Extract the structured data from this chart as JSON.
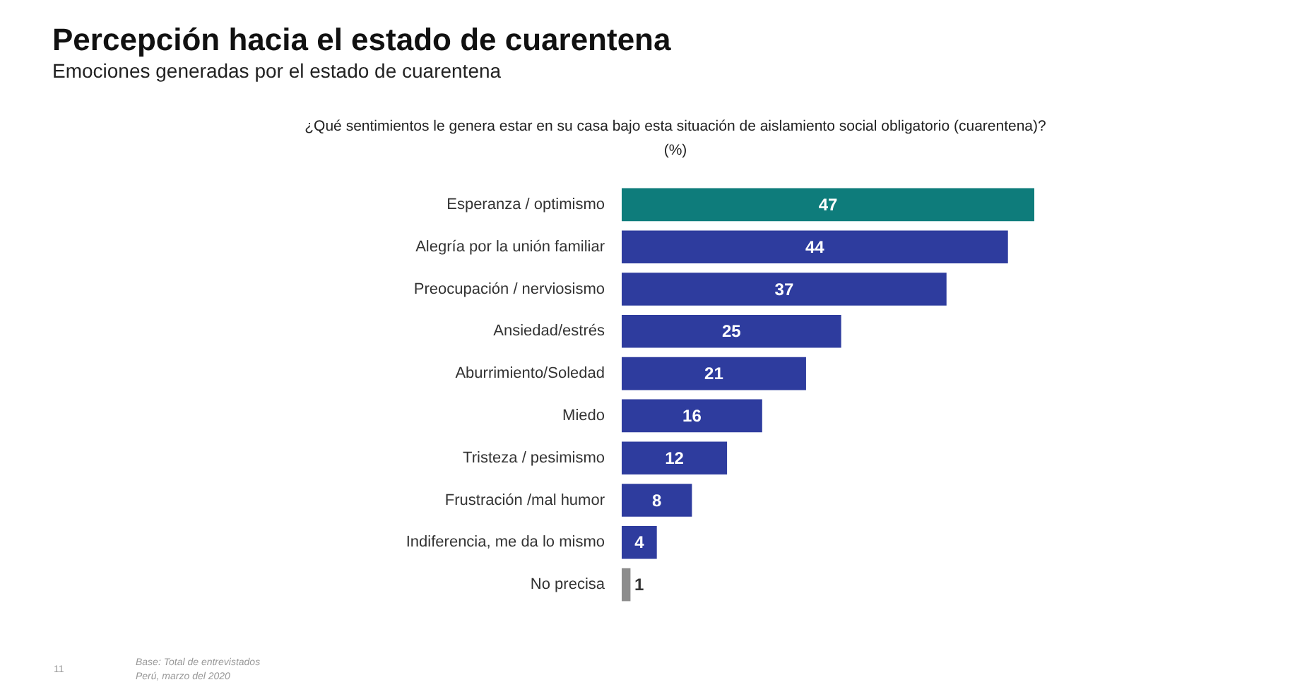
{
  "chart_data": {
    "type": "bar",
    "orientation": "horizontal",
    "title": "Percepción hacia el estado de cuarentena",
    "subtitle": "Emociones generadas por el estado de cuarentena",
    "categories": [
      "Esperanza / optimismo",
      "Alegría por la unión familiar",
      "Preocupación / nerviosismo",
      "Ansiedad/estrés",
      "Aburrimiento/Soledad",
      "Miedo",
      "Tristeza / pesimismo",
      "Frustración /mal humor",
      "Indiferencia, me da lo mismo",
      "No precisa"
    ],
    "values": [
      47,
      44,
      37,
      25,
      21,
      16,
      12,
      8,
      4,
      1
    ],
    "colors": [
      "#0e7c7b",
      "#2e3c9e",
      "#2e3c9e",
      "#2e3c9e",
      "#2e3c9e",
      "#2e3c9e",
      "#2e3c9e",
      "#2e3c9e",
      "#2e3c9e",
      "#8c8c8c"
    ],
    "data_labels": true,
    "annotations": [
      "¿Qué sentimientos le genera estar en su casa bajo esta situación de aislamiento social obligatorio (cuarentena)?",
      "(%)",
      "Base: Total de entrevistados",
      "Perú, marzo del 2020",
      "11"
    ]
  }
}
